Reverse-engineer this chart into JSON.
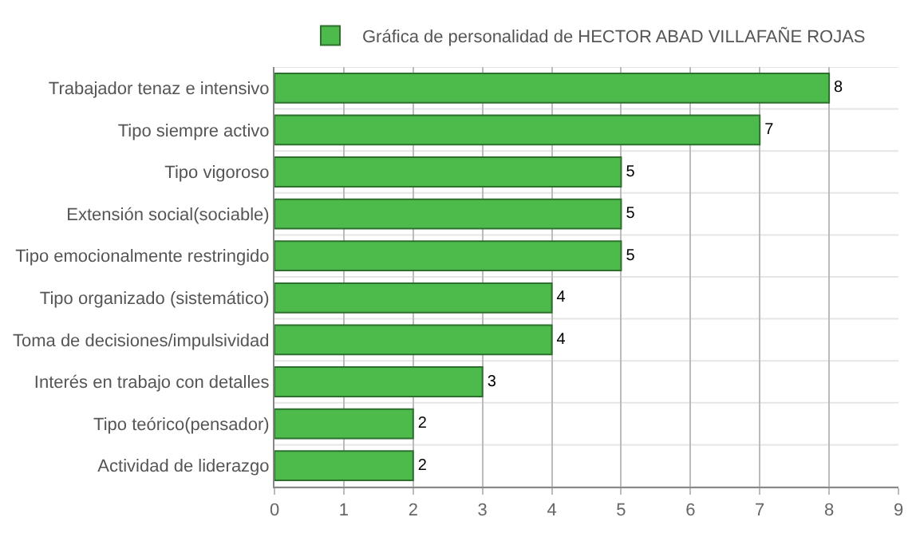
{
  "chart_data": {
    "type": "bar",
    "orientation": "horizontal",
    "categories": [
      "Trabajador tenaz e intensivo",
      "Tipo siempre activo",
      "Tipo vigoroso",
      "Extensión social(sociable)",
      "Tipo emocionalmente restringido",
      "Tipo organizado (sistemático)",
      "Toma de decisiones/impulsividad",
      "Interés en trabajo con detalles",
      "Tipo teórico(pensador)",
      "Actividad de liderazgo"
    ],
    "series": [
      {
        "name": "Gráfica de personalidad de HECTOR ABAD VILLAFAÑE ROJAS",
        "color": "#4cbb4c",
        "values": [
          8,
          7,
          5,
          5,
          5,
          4,
          4,
          3,
          2,
          2
        ]
      }
    ],
    "xlim": [
      0,
      9
    ],
    "xticks": [
      0,
      1,
      2,
      3,
      4,
      5,
      6,
      7,
      8,
      9
    ],
    "data_labels": true,
    "grid": true,
    "legend": "top"
  }
}
